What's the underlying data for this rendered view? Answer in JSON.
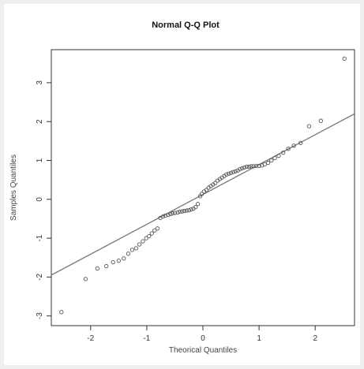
{
  "chart_data": {
    "type": "scatter",
    "title": "Normal Q-Q Plot",
    "xlabel": "Theorical Quantiles",
    "ylabel": "Samples Quantiles",
    "xlim": [
      -2.7,
      2.7
    ],
    "ylim": [
      -3.25,
      3.85
    ],
    "x_ticks": [
      -2,
      -1,
      0,
      1,
      2
    ],
    "y_ticks": [
      -3,
      -2,
      -1,
      0,
      1,
      2,
      3
    ],
    "x_tick_labels": [
      "-2",
      "-1",
      "0",
      "1",
      "2"
    ],
    "y_tick_labels": [
      "-3",
      "-2",
      "-1",
      "0",
      "1",
      "2",
      "3"
    ],
    "grid": false,
    "colors": {
      "points": "#555555",
      "line": "#777777",
      "axes": "#333333"
    },
    "reference_line": {
      "x": [
        -2.7,
        2.7
      ],
      "y": [
        -1.95,
        2.2
      ]
    },
    "points": {
      "x": [
        -2.52,
        -2.09,
        -1.88,
        -1.72,
        -1.6,
        -1.5,
        -1.41,
        -1.33,
        -1.26,
        -1.19,
        -1.13,
        -1.07,
        -1.01,
        -0.96,
        -0.91,
        -0.86,
        -0.81,
        -0.76,
        -0.71,
        -0.67,
        -0.62,
        -0.58,
        -0.54,
        -0.5,
        -0.45,
        -0.41,
        -0.37,
        -0.33,
        -0.29,
        -0.25,
        -0.21,
        -0.17,
        -0.13,
        -0.09,
        -0.05,
        -0.02,
        0.02,
        0.06,
        0.1,
        0.14,
        0.18,
        0.22,
        0.26,
        0.3,
        0.34,
        0.38,
        0.42,
        0.46,
        0.5,
        0.54,
        0.58,
        0.62,
        0.66,
        0.7,
        0.74,
        0.78,
        0.82,
        0.86,
        0.9,
        0.95,
        1.0,
        1.05,
        1.1,
        1.16,
        1.22,
        1.28,
        1.35,
        1.43,
        1.52,
        1.62,
        1.74,
        1.89,
        2.1,
        2.52
      ],
      "y": [
        -2.9,
        -2.05,
        -1.78,
        -1.72,
        -1.62,
        -1.58,
        -1.52,
        -1.4,
        -1.3,
        -1.26,
        -1.16,
        -1.08,
        -1.0,
        -0.95,
        -0.88,
        -0.8,
        -0.75,
        -0.48,
        -0.44,
        -0.42,
        -0.4,
        -0.38,
        -0.36,
        -0.35,
        -0.34,
        -0.32,
        -0.31,
        -0.3,
        -0.29,
        -0.28,
        -0.26,
        -0.24,
        -0.2,
        -0.12,
        0.08,
        0.14,
        0.2,
        0.24,
        0.3,
        0.34,
        0.38,
        0.42,
        0.48,
        0.52,
        0.56,
        0.6,
        0.64,
        0.66,
        0.68,
        0.7,
        0.72,
        0.74,
        0.78,
        0.8,
        0.82,
        0.84,
        0.84,
        0.85,
        0.85,
        0.86,
        0.86,
        0.87,
        0.9,
        0.94,
        1.0,
        1.06,
        1.12,
        1.2,
        1.3,
        1.38,
        1.45,
        1.88,
        2.02,
        3.62
      ]
    }
  }
}
